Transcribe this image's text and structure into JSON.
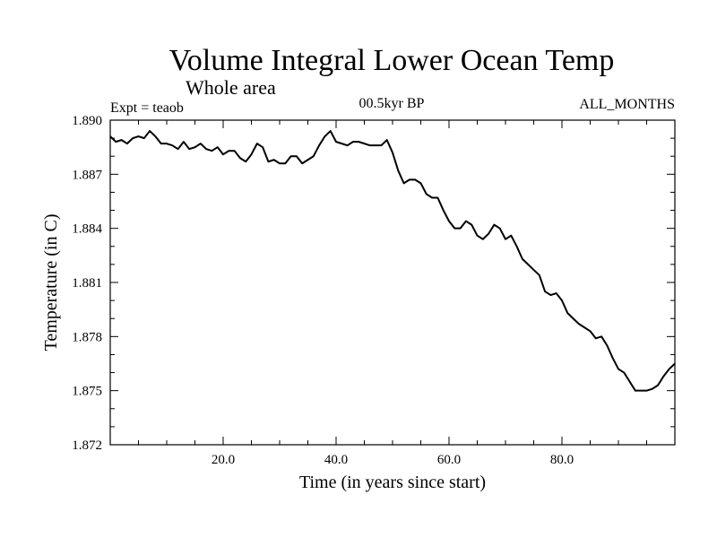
{
  "chart_data": {
    "type": "line",
    "title": "Volume Integral Lower Ocean Temp",
    "subtitle": "Whole area",
    "annotations": {
      "left": "Expt = teaob",
      "center": "00.5kyr BP",
      "right": "ALL_MONTHS"
    },
    "xlabel": "Time (in years since start)",
    "ylabel": "Temperature (in C)",
    "xlim": [
      0,
      100
    ],
    "ylim": [
      1.872,
      1.89
    ],
    "xticks": [
      20,
      40,
      60,
      80
    ],
    "xtick_labels": [
      "20.0",
      "40.0",
      "60.0",
      "80.0"
    ],
    "yticks": [
      1.872,
      1.875,
      1.878,
      1.881,
      1.884,
      1.887,
      1.89
    ],
    "ytick_labels": [
      "1.872",
      "1.875",
      "1.878",
      "1.881",
      "1.884",
      "1.887",
      "1.890"
    ],
    "grid": false,
    "series": [
      {
        "name": "teaob",
        "color": "#000000",
        "x": [
          0,
          1,
          2,
          3,
          4,
          5,
          6,
          7,
          8,
          9,
          10,
          11,
          12,
          13,
          14,
          15,
          16,
          17,
          18,
          19,
          20,
          21,
          22,
          23,
          24,
          25,
          26,
          27,
          28,
          29,
          30,
          31,
          32,
          33,
          34,
          35,
          36,
          37,
          38,
          39,
          40,
          41,
          42,
          43,
          44,
          45,
          46,
          47,
          48,
          49,
          50,
          51,
          52,
          53,
          54,
          55,
          56,
          57,
          58,
          59,
          60,
          61,
          62,
          63,
          64,
          65,
          66,
          67,
          68,
          69,
          70,
          71,
          72,
          73,
          74,
          75,
          76,
          77,
          78,
          79,
          80,
          81,
          82,
          83,
          84,
          85,
          86,
          87,
          88,
          89,
          90,
          91,
          92,
          93,
          94,
          95,
          96,
          97,
          98,
          99,
          100
        ],
        "values": [
          1.8891,
          1.8888,
          1.8889,
          1.8887,
          1.889,
          1.8891,
          1.889,
          1.8894,
          1.8891,
          1.8887,
          1.8887,
          1.8886,
          1.8884,
          1.8888,
          1.8884,
          1.8885,
          1.8887,
          1.8884,
          1.8883,
          1.8885,
          1.8881,
          1.8883,
          1.8883,
          1.8879,
          1.8877,
          1.8881,
          1.8887,
          1.8885,
          1.8877,
          1.8878,
          1.8876,
          1.8876,
          1.888,
          1.888,
          1.8876,
          1.8878,
          1.888,
          1.8886,
          1.8891,
          1.8894,
          1.8888,
          1.8887,
          1.8886,
          1.8888,
          1.8888,
          1.8887,
          1.8886,
          1.8886,
          1.8886,
          1.8889,
          1.8882,
          1.8872,
          1.8865,
          1.8867,
          1.8867,
          1.8865,
          1.8859,
          1.8857,
          1.8857,
          1.885,
          1.8844,
          1.884,
          1.884,
          1.8844,
          1.8842,
          1.8836,
          1.8834,
          1.8837,
          1.8842,
          1.884,
          1.8834,
          1.8836,
          1.883,
          1.8823,
          1.882,
          1.8817,
          1.8814,
          1.8805,
          1.8803,
          1.8804,
          1.88,
          1.8793,
          1.879,
          1.8787,
          1.8785,
          1.8783,
          1.8779,
          1.878,
          1.8775,
          1.8768,
          1.8762,
          1.876,
          1.8755,
          1.875,
          1.875,
          1.875,
          1.8751,
          1.8753,
          1.8758,
          1.8762,
          1.8765
        ]
      }
    ]
  }
}
